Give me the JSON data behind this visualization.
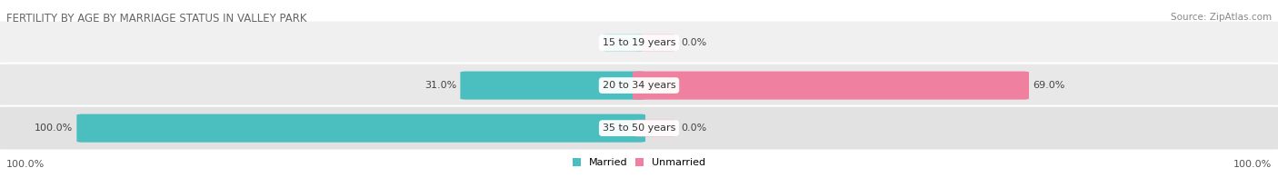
{
  "title": "FERTILITY BY AGE BY MARRIAGE STATUS IN VALLEY PARK",
  "source": "Source: ZipAtlas.com",
  "categories": [
    "15 to 19 years",
    "20 to 34 years",
    "35 to 50 years"
  ],
  "married_values": [
    0.0,
    31.0,
    100.0
  ],
  "unmarried_values": [
    0.0,
    69.0,
    0.0
  ],
  "married_color": "#4BBFBF",
  "unmarried_color": "#F080A0",
  "unmarried_light_color": "#F8B4C8",
  "row_colors": [
    "#EFEFEF",
    "#E8E8E8",
    "#E2E2E2"
  ],
  "title_fontsize": 8.5,
  "source_fontsize": 7.5,
  "label_fontsize": 8,
  "tick_fontsize": 8,
  "legend_fontsize": 8,
  "axis_label_left": "100.0%",
  "axis_label_right": "100.0%",
  "background_color": "#FFFFFF"
}
